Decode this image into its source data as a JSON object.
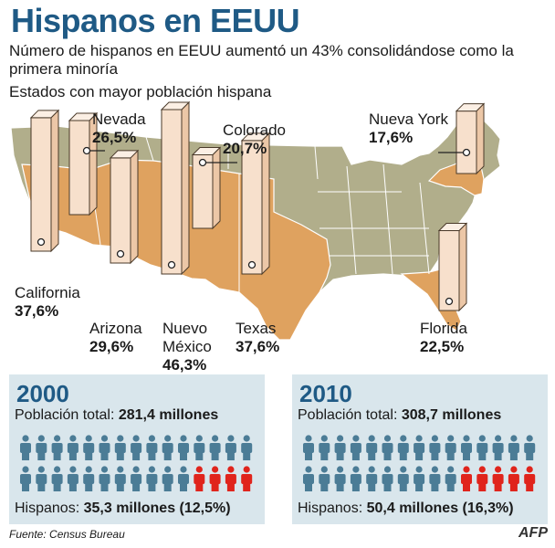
{
  "header": {
    "title": "Hispanos en EEUU",
    "subtitle": "Número de hispanos en EEUU aumentó un 43% consolidándose como la primera minoría"
  },
  "chart_data": [
    {
      "type": "bar",
      "title": "Estados con mayor población hispana",
      "unit": "%",
      "categories": [
        "California",
        "Nevada",
        "Arizona",
        "Nuevo México",
        "Colorado",
        "Texas",
        "Nueva York",
        "Florida"
      ],
      "category_labels": [
        "California",
        "Nevada",
        "Arizona",
        "Nuevo\nMéxico",
        "Colorado",
        "Texas",
        "Nueva York",
        "Florida"
      ],
      "values": [
        37.6,
        26.5,
        29.6,
        46.3,
        20.7,
        37.6,
        17.6,
        22.5
      ],
      "value_labels": [
        "37,6%",
        "26,5%",
        "29,6%",
        "46,3%",
        "20,7%",
        "37,6%",
        "17,6%",
        "22,5%"
      ]
    },
    {
      "type": "table",
      "rows": [
        {
          "year": "2000",
          "total_label": "Población total:",
          "total_value": "281,4 millones",
          "hispanic_label": "Hispanos:",
          "hispanic_value": "35,3 millones (12,5%)",
          "hispanic_pct": 12.5
        },
        {
          "year": "2010",
          "total_label": "Población total:",
          "total_value": "308,7 millones",
          "hispanic_label": "Hispanos:",
          "hispanic_value": "50,4 millones (16,3%)",
          "hispanic_pct": 16.3
        }
      ]
    }
  ],
  "colors": {
    "title": "#1f5a85",
    "map_other": "#b1ae8b",
    "map_highlight": "#dfa25f",
    "bar_front": "#f7e0cc",
    "bar_side": "#ecc7a7",
    "person": "#4b7c96",
    "person_hispanic": "#e0241c",
    "panel_bg": "#d9e6ec"
  },
  "footer": {
    "source": "Fuente: Census Bureau",
    "agency": "AFP"
  }
}
